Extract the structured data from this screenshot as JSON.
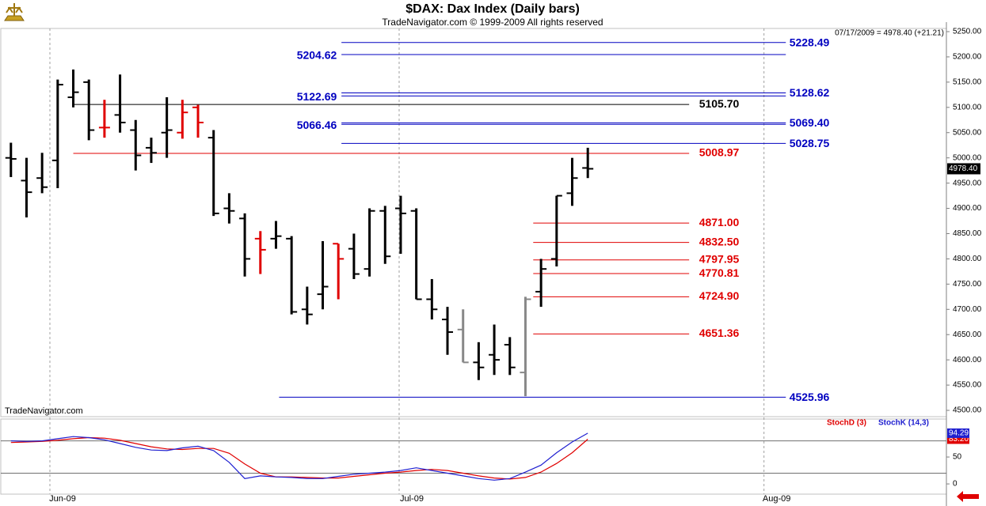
{
  "chart_data": [
    {
      "type": "ohlc",
      "title": "$DAX:  Dax Index  (Daily bars)",
      "subtitle": "TradeNavigator.com © 1999-2009 All rights reserved",
      "watermark": "TradeNavigator.com",
      "last_label": "07/17/2009 = 4978.40 (+21.21)",
      "last_price": {
        "value": 4978.4,
        "label": "4978.40"
      },
      "categories": [
        null,
        null,
        null,
        null,
        null,
        null,
        null,
        null,
        null,
        null,
        null,
        null,
        null,
        null,
        null,
        null,
        null,
        null,
        null,
        null,
        null,
        null,
        null,
        null,
        null,
        null,
        null,
        null,
        null,
        null,
        null,
        null,
        null,
        null,
        null,
        null,
        null,
        null
      ],
      "open": [
        5000,
        4955,
        4960,
        4995,
        5120,
        5150,
        5060,
        5085,
        5055,
        5020,
        5050,
        5050,
        5100,
        5040,
        4900,
        4880,
        4840,
        4840,
        4840,
        4700,
        4730,
        4830,
        4820,
        4780,
        4895,
        4900,
        4895,
        4720,
        4680,
        4660,
        4595,
        4610,
        4630,
        4575,
        4735,
        4800,
        4930,
        4980
      ],
      "high": [
        5030,
        5000,
        5010,
        5155,
        5175,
        5155,
        5115,
        5165,
        5075,
        5040,
        5120,
        5115,
        5105,
        5055,
        4930,
        4890,
        4855,
        4875,
        4845,
        4745,
        4835,
        4830,
        4850,
        4900,
        4905,
        4925,
        4900,
        4760,
        4705,
        4700,
        4635,
        4670,
        4645,
        4725,
        4800,
        4925,
        5000,
        5020
      ],
      "low": [
        4962,
        4882,
        4930,
        4940,
        5100,
        5035,
        5040,
        5050,
        4975,
        4990,
        5000,
        5038,
        5040,
        4885,
        4870,
        4765,
        4770,
        4820,
        4690,
        4670,
        4700,
        4720,
        4760,
        4765,
        4790,
        4810,
        4720,
        4680,
        4610,
        4595,
        4560,
        4570,
        4570,
        4528,
        4705,
        4785,
        4905,
        4960
      ],
      "close": [
        4998,
        4932,
        4942,
        5145,
        5130,
        5055,
        5060,
        5070,
        5005,
        5010,
        5055,
        5090,
        5070,
        4890,
        4895,
        4800,
        4818,
        4845,
        4695,
        4690,
        4745,
        4800,
        4770,
        4895,
        4805,
        4890,
        4720,
        4700,
        4655,
        4595,
        4585,
        4600,
        4585,
        4720,
        4780,
        4925,
        4960,
        4978.4
      ],
      "bar_colors": [
        "#000",
        "#000",
        "#000",
        "#000",
        "#000",
        "#000",
        "#e00000",
        "#000",
        "#000",
        "#000",
        "#000",
        "#e00000",
        "#e00000",
        "#000",
        "#000",
        "#000",
        "#e00000",
        "#000",
        "#000",
        "#000",
        "#000",
        "#e00000",
        "#000",
        "#000",
        "#000",
        "#000",
        "#000",
        "#000",
        "#000",
        "#888",
        "#000",
        "#000",
        "#000",
        "#888",
        "#000",
        "#000",
        "#000",
        "#000"
      ],
      "xlim": [
        -0.7,
        60
      ],
      "xticks": [
        {
          "value": 2.5,
          "label": "Jun-09"
        },
        {
          "value": 24.9,
          "label": "Jul-09"
        },
        {
          "value": 48.3,
          "label": "Aug-09"
        }
      ],
      "ylim": [
        4487.5,
        5268.8
      ],
      "yticks": [
        {
          "value": 4500,
          "label": "4500.00"
        },
        {
          "value": 4550,
          "label": "4550.00"
        },
        {
          "value": 4600,
          "label": "4600.00"
        },
        {
          "value": 4650,
          "label": "4650.00"
        },
        {
          "value": 4700,
          "label": "4700.00"
        },
        {
          "value": 4750,
          "label": "4750.00"
        },
        {
          "value": 4800,
          "label": "4800.00"
        },
        {
          "value": 4850,
          "label": "4850.00"
        },
        {
          "value": 4900,
          "label": "4900.00"
        },
        {
          "value": 4950,
          "label": "4950.00"
        },
        {
          "value": 5000,
          "label": "5000.00"
        },
        {
          "value": 5050,
          "label": "5050.00"
        },
        {
          "value": 5100,
          "label": "5100.00"
        },
        {
          "value": 5150,
          "label": "5150.00"
        },
        {
          "value": 5200,
          "label": "5200.00"
        },
        {
          "value": 5250,
          "label": "5250.00"
        }
      ],
      "levels": [
        {
          "value": 5228.49,
          "label": "5228.49",
          "color": "#0000c0",
          "from": 21.2,
          "to": 49.7,
          "label_at": "right"
        },
        {
          "value": 5204.62,
          "label": "5204.62",
          "color": "#0000c0",
          "from": 21.2,
          "to": 49.7,
          "label_at": "left"
        },
        {
          "value": 5128.62,
          "label": "5128.62",
          "color": "#0000c0",
          "from": 21.2,
          "to": 49.7,
          "label_at": "right"
        },
        {
          "value": 5122.69,
          "label": "5122.69",
          "color": "#0000c0",
          "from": 21.2,
          "to": 49.7,
          "label_at": "left"
        },
        {
          "value": 5105.7,
          "label": "5105.70",
          "color": "#000000",
          "from": 4,
          "to": 43.5,
          "label_at": "middle"
        },
        {
          "value": 5069.4,
          "label": "5069.40",
          "color": "#0000c0",
          "from": 21.2,
          "to": 49.7,
          "label_at": "right"
        },
        {
          "value": 5066.46,
          "label": "5066.46",
          "color": "#0000c0",
          "from": 21.2,
          "to": 49.7,
          "label_at": "left"
        },
        {
          "value": 5028.75,
          "label": "5028.75",
          "color": "#0000c0",
          "from": 21.2,
          "to": 49.7,
          "label_at": "right"
        },
        {
          "value": 5008.97,
          "label": "5008.97",
          "color": "#e00000",
          "from": 4,
          "to": 43.5,
          "label_at": "middle"
        },
        {
          "value": 4871.0,
          "label": "4871.00",
          "color": "#e00000",
          "from": 33.5,
          "to": 43.5,
          "label_at": "middle"
        },
        {
          "value": 4832.5,
          "label": "4832.50",
          "color": "#e00000",
          "from": 33.5,
          "to": 43.5,
          "label_at": "middle"
        },
        {
          "value": 4797.95,
          "label": "4797.95",
          "color": "#e00000",
          "from": 33.5,
          "to": 43.5,
          "label_at": "middle"
        },
        {
          "value": 4770.81,
          "label": "4770.81",
          "color": "#e00000",
          "from": 33.5,
          "to": 43.5,
          "label_at": "middle"
        },
        {
          "value": 4724.9,
          "label": "4724.90",
          "color": "#e00000",
          "from": 33.5,
          "to": 43.5,
          "label_at": "middle"
        },
        {
          "value": 4651.36,
          "label": "4651.36",
          "color": "#e00000",
          "from": 33.5,
          "to": 43.5,
          "label_at": "middle"
        },
        {
          "value": 4525.96,
          "label": "4525.96",
          "color": "#0000c0",
          "from": 17.2,
          "to": 49.7,
          "label_at": "right"
        }
      ]
    },
    {
      "type": "line",
      "xlim": [
        -0.7,
        60
      ],
      "ylim": [
        -19,
        120.6
      ],
      "yticks": [
        0,
        50
      ],
      "reference_lines": [
        80,
        20
      ],
      "series": [
        {
          "name": "StochD (3)",
          "color": "#e00000",
          "last_label": "83.20",
          "values": [
            77,
            78,
            79,
            81,
            84,
            86,
            85,
            81,
            75,
            69,
            65,
            64,
            66,
            66,
            57,
            37,
            20,
            13,
            13,
            12,
            11,
            11,
            14,
            17,
            20,
            22,
            25,
            27,
            25,
            20,
            15,
            11,
            9,
            12,
            22,
            38,
            58,
            83.2
          ]
        },
        {
          "name": "StochK (14,3)",
          "color": "#2020d0",
          "last_label": "94.29",
          "values": [
            80,
            79,
            80,
            84,
            88,
            86,
            82,
            75,
            68,
            63,
            62,
            67,
            70,
            62,
            40,
            10,
            15,
            13,
            12,
            10,
            10,
            14,
            18,
            20,
            22,
            25,
            30,
            25,
            20,
            15,
            10,
            7,
            10,
            22,
            35,
            58,
            78,
            94.29
          ]
        }
      ]
    }
  ]
}
